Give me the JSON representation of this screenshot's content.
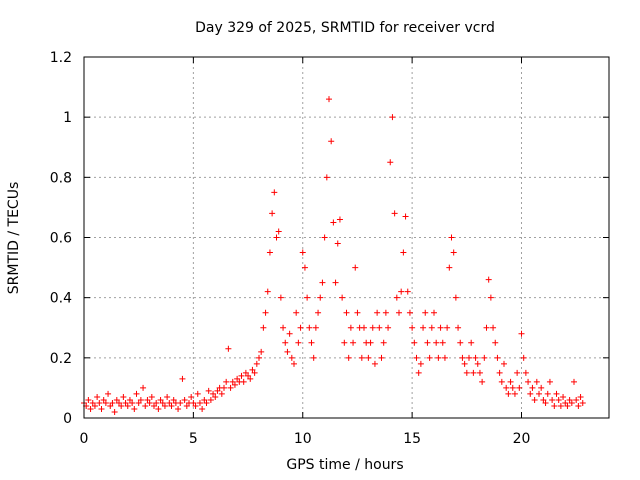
{
  "chart_data": {
    "type": "scatter",
    "title": "Day 329 of 2025, SRMTID for receiver vcrd",
    "xlabel": "GPS time / hours",
    "ylabel": "SRMTID / TECUs",
    "xlim": [
      0,
      24
    ],
    "ylim": [
      0,
      1.2
    ],
    "xticks": [
      0,
      5,
      10,
      15,
      20
    ],
    "yticks": [
      0,
      0.2,
      0.4,
      0.6,
      0.8,
      1,
      1.2
    ],
    "xtick_labels": [
      "0",
      "5",
      "10",
      "15",
      "20"
    ],
    "ytick_labels": [
      "0",
      "0.2",
      "0.4",
      "0.6",
      "0.8",
      "1",
      "1.2"
    ],
    "grid": true,
    "marker": "+",
    "color": "#ff0000",
    "series": [
      {
        "name": "SRMTID",
        "points": [
          [
            0.0,
            0.05
          ],
          [
            0.1,
            0.04
          ],
          [
            0.2,
            0.06
          ],
          [
            0.3,
            0.03
          ],
          [
            0.4,
            0.05
          ],
          [
            0.5,
            0.04
          ],
          [
            0.6,
            0.07
          ],
          [
            0.7,
            0.05
          ],
          [
            0.8,
            0.03
          ],
          [
            0.9,
            0.06
          ],
          [
            1.0,
            0.05
          ],
          [
            1.1,
            0.08
          ],
          [
            1.2,
            0.04
          ],
          [
            1.3,
            0.05
          ],
          [
            1.4,
            0.02
          ],
          [
            1.5,
            0.06
          ],
          [
            1.6,
            0.05
          ],
          [
            1.7,
            0.04
          ],
          [
            1.8,
            0.07
          ],
          [
            1.9,
            0.05
          ],
          [
            2.0,
            0.04
          ],
          [
            2.1,
            0.06
          ],
          [
            2.2,
            0.05
          ],
          [
            2.3,
            0.03
          ],
          [
            2.4,
            0.08
          ],
          [
            2.5,
            0.05
          ],
          [
            2.6,
            0.06
          ],
          [
            2.7,
            0.1
          ],
          [
            2.8,
            0.04
          ],
          [
            2.9,
            0.06
          ],
          [
            3.0,
            0.05
          ],
          [
            3.1,
            0.07
          ],
          [
            3.2,
            0.04
          ],
          [
            3.3,
            0.05
          ],
          [
            3.4,
            0.03
          ],
          [
            3.5,
            0.06
          ],
          [
            3.6,
            0.05
          ],
          [
            3.7,
            0.04
          ],
          [
            3.8,
            0.07
          ],
          [
            3.9,
            0.05
          ],
          [
            4.0,
            0.04
          ],
          [
            4.1,
            0.06
          ],
          [
            4.2,
            0.05
          ],
          [
            4.3,
            0.03
          ],
          [
            4.4,
            0.05
          ],
          [
            4.5,
            0.13
          ],
          [
            4.6,
            0.06
          ],
          [
            4.7,
            0.04
          ],
          [
            4.8,
            0.05
          ],
          [
            4.9,
            0.07
          ],
          [
            5.0,
            0.05
          ],
          [
            5.1,
            0.04
          ],
          [
            5.2,
            0.08
          ],
          [
            5.3,
            0.05
          ],
          [
            5.4,
            0.03
          ],
          [
            5.5,
            0.06
          ],
          [
            5.6,
            0.05
          ],
          [
            5.7,
            0.09
          ],
          [
            5.8,
            0.06
          ],
          [
            5.9,
            0.08
          ],
          [
            6.0,
            0.07
          ],
          [
            6.1,
            0.09
          ],
          [
            6.2,
            0.1
          ],
          [
            6.3,
            0.08
          ],
          [
            6.4,
            0.1
          ],
          [
            6.5,
            0.12
          ],
          [
            6.6,
            0.23
          ],
          [
            6.7,
            0.1
          ],
          [
            6.8,
            0.12
          ],
          [
            6.9,
            0.11
          ],
          [
            7.0,
            0.13
          ],
          [
            7.1,
            0.12
          ],
          [
            7.2,
            0.14
          ],
          [
            7.3,
            0.12
          ],
          [
            7.4,
            0.15
          ],
          [
            7.5,
            0.14
          ],
          [
            7.6,
            0.13
          ],
          [
            7.7,
            0.16
          ],
          [
            7.8,
            0.15
          ],
          [
            7.9,
            0.18
          ],
          [
            8.0,
            0.2
          ],
          [
            8.1,
            0.22
          ],
          [
            8.2,
            0.3
          ],
          [
            8.3,
            0.35
          ],
          [
            8.4,
            0.42
          ],
          [
            8.5,
            0.55
          ],
          [
            8.6,
            0.68
          ],
          [
            8.7,
            0.75
          ],
          [
            8.8,
            0.6
          ],
          [
            8.9,
            0.62
          ],
          [
            9.0,
            0.4
          ],
          [
            9.1,
            0.3
          ],
          [
            9.2,
            0.25
          ],
          [
            9.3,
            0.22
          ],
          [
            9.4,
            0.28
          ],
          [
            9.5,
            0.2
          ],
          [
            9.6,
            0.18
          ],
          [
            9.7,
            0.35
          ],
          [
            9.8,
            0.25
          ],
          [
            9.9,
            0.3
          ],
          [
            10.0,
            0.55
          ],
          [
            10.1,
            0.5
          ],
          [
            10.2,
            0.4
          ],
          [
            10.3,
            0.3
          ],
          [
            10.4,
            0.25
          ],
          [
            10.5,
            0.2
          ],
          [
            10.6,
            0.3
          ],
          [
            10.7,
            0.35
          ],
          [
            10.8,
            0.4
          ],
          [
            10.9,
            0.45
          ],
          [
            11.0,
            0.6
          ],
          [
            11.1,
            0.8
          ],
          [
            11.2,
            1.06
          ],
          [
            11.3,
            0.92
          ],
          [
            11.4,
            0.65
          ],
          [
            11.5,
            0.45
          ],
          [
            11.6,
            0.58
          ],
          [
            11.7,
            0.66
          ],
          [
            11.8,
            0.4
          ],
          [
            11.9,
            0.25
          ],
          [
            12.0,
            0.35
          ],
          [
            12.1,
            0.2
          ],
          [
            12.2,
            0.3
          ],
          [
            12.3,
            0.25
          ],
          [
            12.4,
            0.5
          ],
          [
            12.5,
            0.35
          ],
          [
            12.6,
            0.3
          ],
          [
            12.7,
            0.2
          ],
          [
            12.8,
            0.3
          ],
          [
            12.9,
            0.25
          ],
          [
            13.0,
            0.2
          ],
          [
            13.1,
            0.25
          ],
          [
            13.2,
            0.3
          ],
          [
            13.3,
            0.18
          ],
          [
            13.4,
            0.35
          ],
          [
            13.5,
            0.3
          ],
          [
            13.6,
            0.2
          ],
          [
            13.7,
            0.25
          ],
          [
            13.8,
            0.35
          ],
          [
            13.9,
            0.3
          ],
          [
            14.0,
            0.85
          ],
          [
            14.1,
            1.0
          ],
          [
            14.2,
            0.68
          ],
          [
            14.3,
            0.4
          ],
          [
            14.4,
            0.35
          ],
          [
            14.5,
            0.42
          ],
          [
            14.6,
            0.55
          ],
          [
            14.7,
            0.67
          ],
          [
            14.8,
            0.42
          ],
          [
            14.9,
            0.35
          ],
          [
            15.0,
            0.3
          ],
          [
            15.1,
            0.25
          ],
          [
            15.2,
            0.2
          ],
          [
            15.3,
            0.15
          ],
          [
            15.4,
            0.18
          ],
          [
            15.5,
            0.3
          ],
          [
            15.6,
            0.35
          ],
          [
            15.7,
            0.25
          ],
          [
            15.8,
            0.2
          ],
          [
            15.9,
            0.3
          ],
          [
            16.0,
            0.35
          ],
          [
            16.1,
            0.25
          ],
          [
            16.2,
            0.2
          ],
          [
            16.3,
            0.3
          ],
          [
            16.4,
            0.25
          ],
          [
            16.5,
            0.2
          ],
          [
            16.6,
            0.3
          ],
          [
            16.7,
            0.5
          ],
          [
            16.8,
            0.6
          ],
          [
            16.9,
            0.55
          ],
          [
            17.0,
            0.4
          ],
          [
            17.1,
            0.3
          ],
          [
            17.2,
            0.25
          ],
          [
            17.3,
            0.2
          ],
          [
            17.4,
            0.18
          ],
          [
            17.5,
            0.15
          ],
          [
            17.6,
            0.2
          ],
          [
            17.7,
            0.25
          ],
          [
            17.8,
            0.15
          ],
          [
            17.9,
            0.2
          ],
          [
            18.0,
            0.18
          ],
          [
            18.1,
            0.15
          ],
          [
            18.2,
            0.12
          ],
          [
            18.3,
            0.2
          ],
          [
            18.4,
            0.3
          ],
          [
            18.5,
            0.46
          ],
          [
            18.6,
            0.4
          ],
          [
            18.7,
            0.3
          ],
          [
            18.8,
            0.25
          ],
          [
            18.9,
            0.2
          ],
          [
            19.0,
            0.15
          ],
          [
            19.1,
            0.12
          ],
          [
            19.2,
            0.18
          ],
          [
            19.3,
            0.1
          ],
          [
            19.4,
            0.08
          ],
          [
            19.5,
            0.12
          ],
          [
            19.6,
            0.1
          ],
          [
            19.7,
            0.08
          ],
          [
            19.8,
            0.15
          ],
          [
            19.9,
            0.1
          ],
          [
            20.0,
            0.28
          ],
          [
            20.1,
            0.2
          ],
          [
            20.2,
            0.15
          ],
          [
            20.3,
            0.12
          ],
          [
            20.4,
            0.08
          ],
          [
            20.5,
            0.1
          ],
          [
            20.6,
            0.06
          ],
          [
            20.7,
            0.12
          ],
          [
            20.8,
            0.08
          ],
          [
            20.9,
            0.1
          ],
          [
            21.0,
            0.06
          ],
          [
            21.1,
            0.05
          ],
          [
            21.2,
            0.08
          ],
          [
            21.3,
            0.12
          ],
          [
            21.4,
            0.06
          ],
          [
            21.5,
            0.04
          ],
          [
            21.6,
            0.08
          ],
          [
            21.7,
            0.06
          ],
          [
            21.8,
            0.04
          ],
          [
            21.9,
            0.07
          ],
          [
            22.0,
            0.05
          ],
          [
            22.1,
            0.04
          ],
          [
            22.2,
            0.06
          ],
          [
            22.3,
            0.05
          ],
          [
            22.4,
            0.12
          ],
          [
            22.5,
            0.06
          ],
          [
            22.6,
            0.04
          ],
          [
            22.7,
            0.07
          ],
          [
            22.8,
            0.05
          ]
        ]
      }
    ]
  }
}
